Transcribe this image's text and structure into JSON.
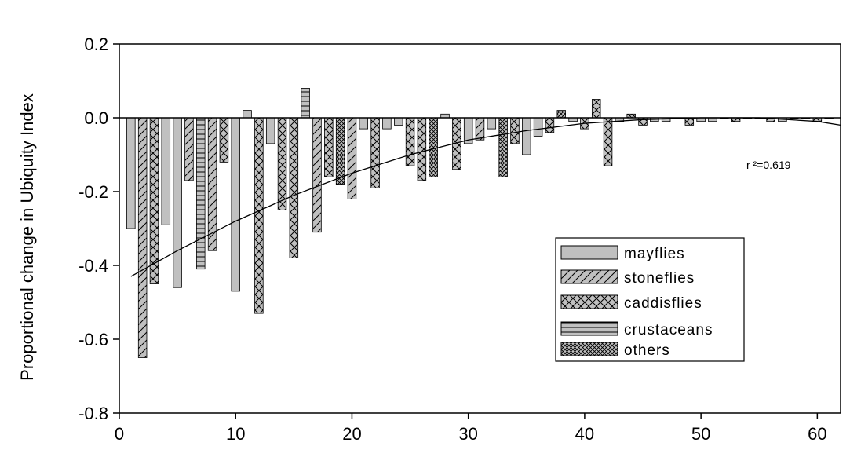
{
  "chart_data": {
    "type": "bar",
    "ylabel": "Proportional change in Ubiquity Index",
    "xlabel": "",
    "xlim": [
      0,
      62
    ],
    "ylim": [
      -0.8,
      0.2
    ],
    "x_ticks": [
      "0",
      "10",
      "20",
      "30",
      "40",
      "50",
      "60"
    ],
    "y_ticks": [
      "0.2",
      "0.0",
      "-0.2",
      "-0.4",
      "-0.6",
      "-0.8"
    ],
    "annotation": "r ²=0.619",
    "legend": {
      "placement": "center-right",
      "entries": [
        "mayflies",
        "stoneflies",
        "caddisflies",
        "crustaceans",
        "others"
      ]
    },
    "bars": [
      {
        "x": 1,
        "y": -0.3,
        "g": "mayflies"
      },
      {
        "x": 2,
        "y": -0.65,
        "g": "stoneflies"
      },
      {
        "x": 3,
        "y": -0.45,
        "g": "caddisflies"
      },
      {
        "x": 4,
        "y": -0.29,
        "g": "mayflies"
      },
      {
        "x": 5,
        "y": -0.46,
        "g": "mayflies"
      },
      {
        "x": 6,
        "y": -0.17,
        "g": "stoneflies"
      },
      {
        "x": 7,
        "y": -0.41,
        "g": "crustaceans"
      },
      {
        "x": 8,
        "y": -0.36,
        "g": "stoneflies"
      },
      {
        "x": 9,
        "y": -0.12,
        "g": "caddisflies"
      },
      {
        "x": 10,
        "y": -0.47,
        "g": "mayflies"
      },
      {
        "x": 11,
        "y": 0.02,
        "g": "mayflies"
      },
      {
        "x": 12,
        "y": -0.53,
        "g": "caddisflies"
      },
      {
        "x": 13,
        "y": -0.07,
        "g": "mayflies"
      },
      {
        "x": 14,
        "y": -0.25,
        "g": "caddisflies"
      },
      {
        "x": 15,
        "y": -0.38,
        "g": "caddisflies"
      },
      {
        "x": 16,
        "y": 0.08,
        "g": "crustaceans"
      },
      {
        "x": 17,
        "y": -0.31,
        "g": "stoneflies"
      },
      {
        "x": 18,
        "y": -0.16,
        "g": "caddisflies"
      },
      {
        "x": 19,
        "y": -0.18,
        "g": "others"
      },
      {
        "x": 20,
        "y": -0.22,
        "g": "stoneflies"
      },
      {
        "x": 21,
        "y": -0.03,
        "g": "mayflies"
      },
      {
        "x": 22,
        "y": -0.19,
        "g": "caddisflies"
      },
      {
        "x": 23,
        "y": -0.03,
        "g": "mayflies"
      },
      {
        "x": 24,
        "y": -0.02,
        "g": "mayflies"
      },
      {
        "x": 25,
        "y": -0.13,
        "g": "caddisflies"
      },
      {
        "x": 26,
        "y": -0.17,
        "g": "caddisflies"
      },
      {
        "x": 27,
        "y": -0.16,
        "g": "others"
      },
      {
        "x": 28,
        "y": 0.01,
        "g": "mayflies"
      },
      {
        "x": 29,
        "y": -0.14,
        "g": "caddisflies"
      },
      {
        "x": 30,
        "y": -0.07,
        "g": "mayflies"
      },
      {
        "x": 31,
        "y": -0.06,
        "g": "stoneflies"
      },
      {
        "x": 32,
        "y": -0.03,
        "g": "mayflies"
      },
      {
        "x": 33,
        "y": -0.16,
        "g": "others"
      },
      {
        "x": 34,
        "y": -0.07,
        "g": "caddisflies"
      },
      {
        "x": 35,
        "y": -0.1,
        "g": "mayflies"
      },
      {
        "x": 36,
        "y": -0.05,
        "g": "mayflies"
      },
      {
        "x": 37,
        "y": -0.04,
        "g": "caddisflies"
      },
      {
        "x": 38,
        "y": 0.02,
        "g": "others"
      },
      {
        "x": 39,
        "y": -0.01,
        "g": "mayflies"
      },
      {
        "x": 40,
        "y": -0.03,
        "g": "caddisflies"
      },
      {
        "x": 41,
        "y": 0.05,
        "g": "caddisflies"
      },
      {
        "x": 42,
        "y": -0.13,
        "g": "caddisflies"
      },
      {
        "x": 43,
        "y": -0.01,
        "g": "mayflies"
      },
      {
        "x": 44,
        "y": 0.01,
        "g": "others"
      },
      {
        "x": 45,
        "y": -0.02,
        "g": "caddisflies"
      },
      {
        "x": 46,
        "y": -0.01,
        "g": "mayflies"
      },
      {
        "x": 47,
        "y": -0.01,
        "g": "mayflies"
      },
      {
        "x": 48,
        "y": 0.0,
        "g": "others"
      },
      {
        "x": 49,
        "y": -0.02,
        "g": "caddisflies"
      },
      {
        "x": 50,
        "y": -0.01,
        "g": "mayflies"
      },
      {
        "x": 51,
        "y": -0.01,
        "g": "mayflies"
      },
      {
        "x": 52,
        "y": 0.0,
        "g": "others"
      },
      {
        "x": 53,
        "y": -0.01,
        "g": "caddisflies"
      },
      {
        "x": 54,
        "y": 0.0,
        "g": "mayflies"
      },
      {
        "x": 55,
        "y": 0.0,
        "g": "others"
      },
      {
        "x": 56,
        "y": -0.01,
        "g": "stoneflies"
      },
      {
        "x": 57,
        "y": -0.01,
        "g": "mayflies"
      },
      {
        "x": 58,
        "y": 0.0,
        "g": "mayflies"
      },
      {
        "x": 59,
        "y": 0.0,
        "g": "others"
      },
      {
        "x": 60,
        "y": -0.01,
        "g": "caddisflies"
      },
      {
        "x": 61,
        "y": 0.0,
        "g": "mayflies"
      }
    ],
    "trend": {
      "x": [
        1,
        5,
        10,
        15,
        20,
        25,
        30,
        35,
        40,
        45,
        50,
        55,
        60,
        62
      ],
      "y": [
        -0.43,
        -0.36,
        -0.28,
        -0.21,
        -0.15,
        -0.1,
        -0.06,
        -0.035,
        -0.015,
        -0.005,
        0.0,
        0.0,
        -0.01,
        -0.02
      ]
    }
  }
}
